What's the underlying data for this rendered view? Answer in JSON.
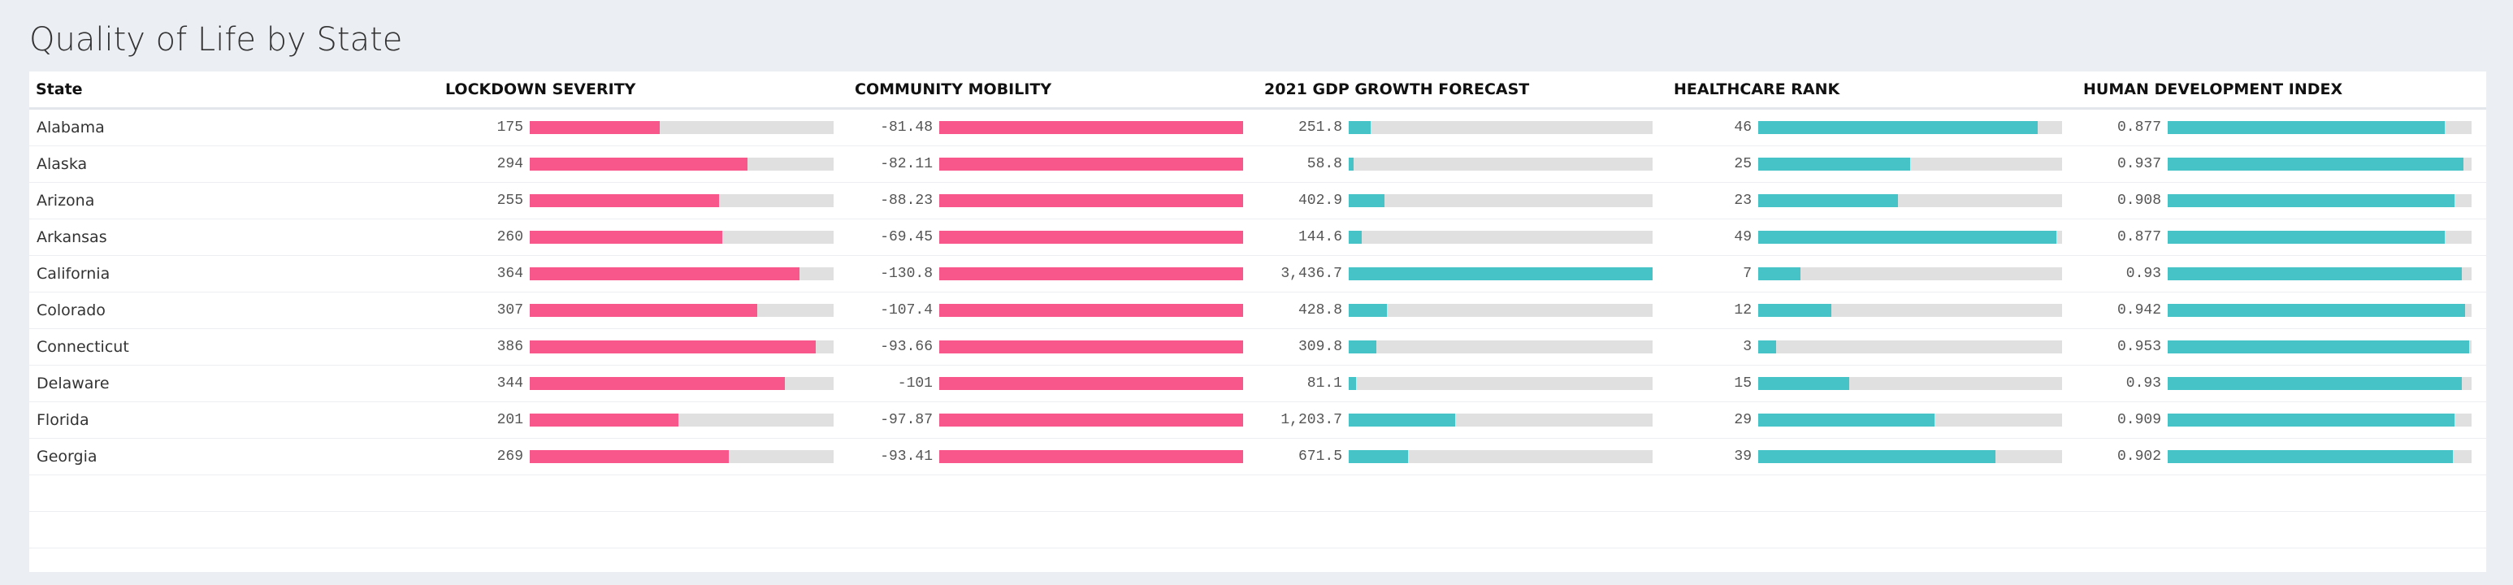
{
  "page": {
    "title": "Quality of Life by State"
  },
  "colors": {
    "pink": "#f7578a",
    "teal": "#45c3c7",
    "track": "#e0e0e0"
  },
  "table": {
    "columns": [
      {
        "key": "state",
        "label": "State"
      },
      {
        "key": "lockdown",
        "label": "LOCKDOWN SEVERITY",
        "color": "#f7578a",
        "max": 410
      },
      {
        "key": "mobility",
        "label": "COMMUNITY MOBILITY",
        "color": "#f7578a",
        "max": 0
      },
      {
        "key": "gdp",
        "label": "2021 GDP GROWTH FORECAST",
        "color": "#45c3c7",
        "max": 3436.7
      },
      {
        "key": "health",
        "label": "HEALTHCARE RANK",
        "color": "#45c3c7",
        "max": 50
      },
      {
        "key": "hdi",
        "label": "HUMAN DEVELOPMENT INDEX",
        "color": "#45c3c7",
        "max": 0.962
      }
    ],
    "rows": [
      {
        "state": "Alabama",
        "lockdown": {
          "text": "175",
          "value": 175
        },
        "mobility": {
          "text": "-81.48",
          "value": -81.48
        },
        "gdp": {
          "text": "251.8",
          "value": 251.8
        },
        "health": {
          "text": "46",
          "value": 46
        },
        "hdi": {
          "text": "0.877",
          "value": 0.877
        }
      },
      {
        "state": "Alaska",
        "lockdown": {
          "text": "294",
          "value": 294
        },
        "mobility": {
          "text": "-82.11",
          "value": -82.11
        },
        "gdp": {
          "text": "58.8",
          "value": 58.8
        },
        "health": {
          "text": "25",
          "value": 25
        },
        "hdi": {
          "text": "0.937",
          "value": 0.937
        }
      },
      {
        "state": "Arizona",
        "lockdown": {
          "text": "255",
          "value": 255
        },
        "mobility": {
          "text": "-88.23",
          "value": -88.23
        },
        "gdp": {
          "text": "402.9",
          "value": 402.9
        },
        "health": {
          "text": "23",
          "value": 23
        },
        "hdi": {
          "text": "0.908",
          "value": 0.908
        }
      },
      {
        "state": "Arkansas",
        "lockdown": {
          "text": "260",
          "value": 260
        },
        "mobility": {
          "text": "-69.45",
          "value": -69.45
        },
        "gdp": {
          "text": "144.6",
          "value": 144.6
        },
        "health": {
          "text": "49",
          "value": 49
        },
        "hdi": {
          "text": "0.877",
          "value": 0.877
        }
      },
      {
        "state": "California",
        "lockdown": {
          "text": "364",
          "value": 364
        },
        "mobility": {
          "text": "-130.8",
          "value": -130.8
        },
        "gdp": {
          "text": "3,436.7",
          "value": 3436.7
        },
        "health": {
          "text": "7",
          "value": 7
        },
        "hdi": {
          "text": "0.93",
          "value": 0.93
        }
      },
      {
        "state": "Colorado",
        "lockdown": {
          "text": "307",
          "value": 307
        },
        "mobility": {
          "text": "-107.4",
          "value": -107.4
        },
        "gdp": {
          "text": "428.8",
          "value": 428.8
        },
        "health": {
          "text": "12",
          "value": 12
        },
        "hdi": {
          "text": "0.942",
          "value": 0.942
        }
      },
      {
        "state": "Connecticut",
        "lockdown": {
          "text": "386",
          "value": 386
        },
        "mobility": {
          "text": "-93.66",
          "value": -93.66
        },
        "gdp": {
          "text": "309.8",
          "value": 309.8
        },
        "health": {
          "text": "3",
          "value": 3
        },
        "hdi": {
          "text": "0.953",
          "value": 0.953
        }
      },
      {
        "state": "Delaware",
        "lockdown": {
          "text": "344",
          "value": 344
        },
        "mobility": {
          "text": "-101",
          "value": -101
        },
        "gdp": {
          "text": "81.1",
          "value": 81.1
        },
        "health": {
          "text": "15",
          "value": 15
        },
        "hdi": {
          "text": "0.93",
          "value": 0.93
        }
      },
      {
        "state": "Florida",
        "lockdown": {
          "text": "201",
          "value": 201
        },
        "mobility": {
          "text": "-97.87",
          "value": -97.87
        },
        "gdp": {
          "text": "1,203.7",
          "value": 1203.7
        },
        "health": {
          "text": "29",
          "value": 29
        },
        "hdi": {
          "text": "0.909",
          "value": 0.909
        }
      },
      {
        "state": "Georgia",
        "lockdown": {
          "text": "269",
          "value": 269
        },
        "mobility": {
          "text": "-93.41",
          "value": -93.41
        },
        "gdp": {
          "text": "671.5",
          "value": 671.5
        },
        "health": {
          "text": "39",
          "value": 39
        },
        "hdi": {
          "text": "0.902",
          "value": 0.902
        }
      }
    ]
  }
}
